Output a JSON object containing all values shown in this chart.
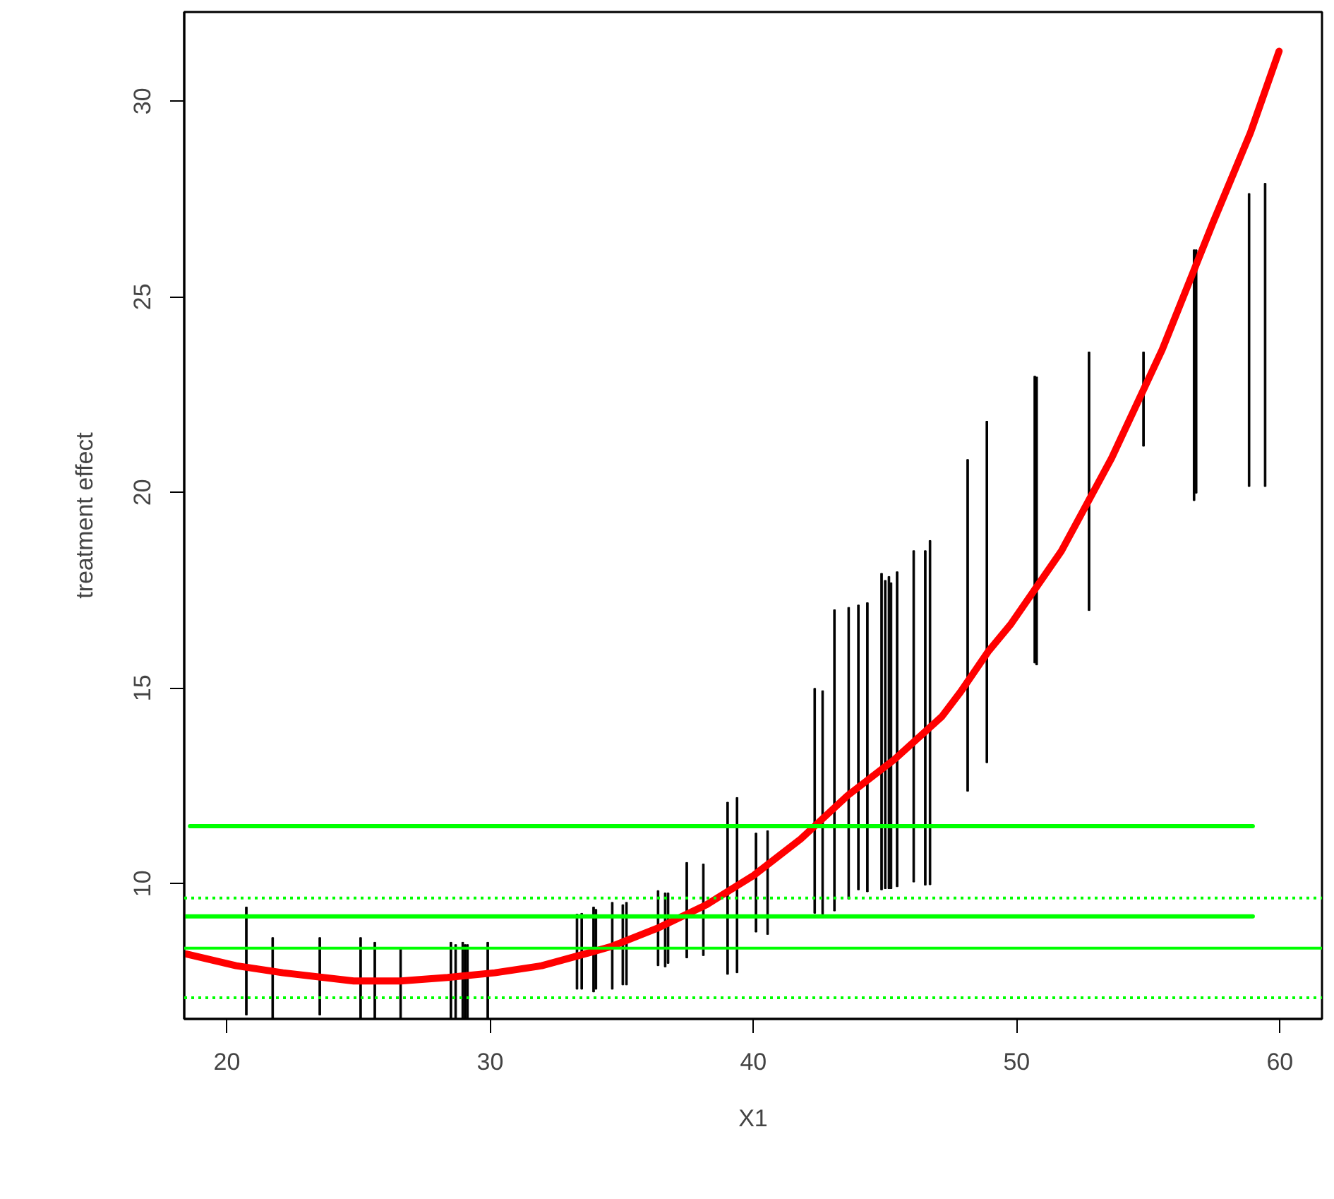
{
  "chart_data": {
    "type": "line",
    "xlabel": "X1",
    "ylabel": "treatment effect",
    "xlim": [
      18.38,
      61.6
    ],
    "ylim": [
      6.54,
      32.28
    ],
    "xticks": [
      20,
      30,
      40,
      50,
      60
    ],
    "yticks": [
      10,
      15,
      20,
      25,
      30
    ],
    "series": [
      {
        "type": "bar",
        "color": "#000000",
        "x": [
          20.74,
          21.74,
          23.53,
          25.08,
          25.62,
          26.6,
          28.51,
          28.69,
          28.96,
          29.05,
          29.14,
          29.91,
          33.3,
          33.48,
          33.93,
          34.02,
          34.64,
          35.04,
          35.18,
          36.38,
          36.65,
          36.76,
          37.47,
          38.1,
          39.02,
          39.38,
          40.1,
          40.54,
          42.33,
          42.63,
          43.08,
          43.62,
          43.99,
          44.33,
          44.87,
          45.01,
          45.15,
          45.23,
          45.46,
          46.09,
          46.53,
          46.71,
          48.14,
          48.87,
          50.69,
          50.76,
          52.75,
          54.82,
          56.74,
          56.82,
          58.83,
          59.44
        ],
        "base": [
          6.64,
          6.54,
          6.64,
          6.54,
          6.54,
          6.54,
          6.54,
          6.54,
          6.54,
          6.54,
          6.54,
          6.54,
          7.3,
          7.3,
          7.23,
          7.3,
          7.3,
          7.41,
          7.41,
          7.9,
          7.87,
          7.96,
          8.1,
          8.16,
          7.68,
          7.72,
          8.76,
          8.7,
          9.24,
          9.22,
          9.3,
          9.6,
          9.84,
          9.79,
          9.84,
          9.87,
          9.87,
          9.87,
          9.92,
          10.04,
          9.96,
          9.97,
          12.36,
          13.09,
          15.64,
          15.59,
          16.98,
          21.18,
          19.79,
          19.98,
          20.15,
          20.15
        ],
        "values": [
          2.76,
          2.08,
          1.98,
          2.08,
          1.96,
          1.81,
          1.96,
          1.9,
          1.96,
          1.9,
          1.9,
          1.96,
          1.92,
          1.94,
          2.17,
          2.04,
          2.22,
          2.05,
          2.11,
          1.92,
          1.89,
          1.8,
          2.44,
          2.34,
          4.4,
          4.48,
          2.53,
          2.65,
          5.75,
          5.71,
          7.7,
          7.46,
          7.28,
          7.39,
          8.09,
          7.88,
          7.98,
          7.82,
          8.05,
          8.47,
          8.55,
          8.8,
          8.48,
          8.73,
          7.33,
          7.36,
          6.61,
          2.41,
          6.41,
          6.22,
          7.49,
          7.75
        ]
      },
      {
        "color": "#ff0000",
        "x": [
          18.47,
          20.35,
          22.13,
          24.82,
          26.6,
          28.39,
          30.18,
          31.96,
          33.75,
          34.64,
          36.43,
          38.22,
          40.01,
          41.8,
          43.58,
          45.37,
          47.16,
          47.87,
          48.94,
          49.79,
          51.7,
          53.61,
          55.53,
          57.45,
          58.88,
          59.97
        ],
        "values": [
          8.2,
          7.9,
          7.72,
          7.51,
          7.51,
          7.6,
          7.72,
          7.9,
          8.23,
          8.4,
          8.88,
          9.46,
          10.21,
          11.14,
          12.25,
          13.18,
          14.27,
          14.9,
          15.95,
          16.64,
          18.5,
          20.88,
          23.65,
          26.88,
          29.19,
          31.28
        ]
      },
      {
        "color": "#00ff00",
        "x": [
          18.6,
          58.97
        ],
        "values": [
          11.47,
          11.47
        ]
      },
      {
        "color": "#00ff00",
        "x": [
          18.38,
          58.97
        ],
        "values": [
          9.16,
          9.16
        ]
      }
    ],
    "ref_lines": [
      {
        "axis": "y",
        "value": 8.35,
        "color": "#00ff00",
        "line_style": "solid"
      },
      {
        "axis": "y",
        "value": 9.63,
        "color": "#00ff00",
        "line_style": "dotted"
      },
      {
        "axis": "y",
        "value": 7.08,
        "color": "#00ff00",
        "line_style": "dotted"
      }
    ]
  }
}
